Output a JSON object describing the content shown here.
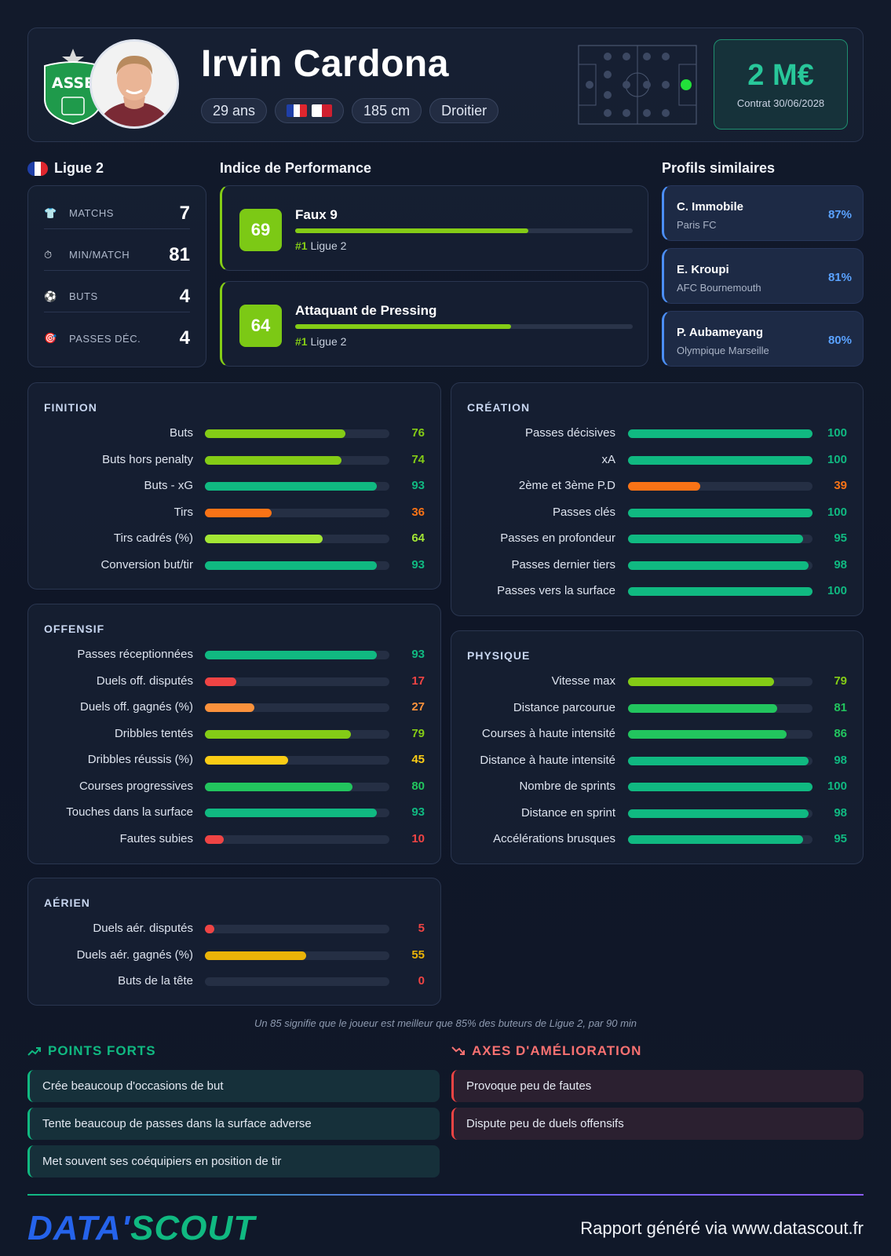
{
  "header": {
    "player_name": "Irvin Cardona",
    "age": "29 ans",
    "height": "185 cm",
    "foot": "Droitier",
    "club_logo_text": "ASSE",
    "nationalities": [
      "France",
      "Malta"
    ],
    "market_value": "2 M€",
    "contract": "Contrat 30/06/2028",
    "position_marker": "right-forward"
  },
  "league": {
    "name": "Ligue 2",
    "stats": [
      {
        "icon": "shirt-icon",
        "glyph": "👕",
        "label": "MATCHS",
        "value": "7"
      },
      {
        "icon": "stopwatch-icon",
        "glyph": "⏱",
        "label": "MIN/MATCH",
        "value": "81"
      },
      {
        "icon": "ball-icon",
        "glyph": "⚽",
        "label": "BUTS",
        "value": "4"
      },
      {
        "icon": "target-icon",
        "glyph": "🎯",
        "label": "PASSES DÉC.",
        "value": "4"
      }
    ]
  },
  "performance": {
    "title": "Indice de Performance",
    "items": [
      {
        "score": "69",
        "name": "Faux 9",
        "rank": "#1",
        "rank_league": "Ligue 2",
        "level": 0.69
      },
      {
        "score": "64",
        "name": "Attaquant de Pressing",
        "rank": "#1",
        "rank_league": "Ligue 2",
        "level": 0.64
      }
    ]
  },
  "similar": {
    "title": "Profils similaires",
    "items": [
      {
        "name": "C. Immobile",
        "club": "Paris FC",
        "pct": "87%"
      },
      {
        "name": "E. Kroupi",
        "club": "AFC Bournemouth",
        "pct": "81%"
      },
      {
        "name": "P. Aubameyang",
        "club": "Olympique Marseille",
        "pct": "80%"
      }
    ]
  },
  "finition": {
    "title": "FINITION",
    "metrics": [
      {
        "label": "Buts",
        "value": 76,
        "color": "#84cc16"
      },
      {
        "label": "Buts hors penalty",
        "value": 74,
        "color": "#84cc16"
      },
      {
        "label": "Buts - xG",
        "value": 93,
        "color": "#10b981"
      },
      {
        "label": "Tirs",
        "value": 36,
        "color": "#f97316"
      },
      {
        "label": "Tirs cadrés (%)",
        "value": 64,
        "color": "#a3e635"
      },
      {
        "label": "Conversion but/tir",
        "value": 93,
        "color": "#10b981"
      }
    ]
  },
  "creation": {
    "title": "CRÉATION",
    "metrics": [
      {
        "label": "Passes décisives",
        "value": 100,
        "color": "#10b981"
      },
      {
        "label": "xA",
        "value": 100,
        "color": "#10b981"
      },
      {
        "label": "2ème et 3ème P.D",
        "value": 39,
        "color": "#f97316"
      },
      {
        "label": "Passes clés",
        "value": 100,
        "color": "#10b981"
      },
      {
        "label": "Passes en profondeur",
        "value": 95,
        "color": "#10b981"
      },
      {
        "label": "Passes dernier tiers",
        "value": 98,
        "color": "#10b981"
      },
      {
        "label": "Passes vers la surface",
        "value": 100,
        "color": "#10b981"
      }
    ]
  },
  "offensif": {
    "title": "OFFENSIF",
    "metrics": [
      {
        "label": "Passes réceptionnées",
        "value": 93,
        "color": "#10b981"
      },
      {
        "label": "Duels off. disputés",
        "value": 17,
        "color": "#ef4444"
      },
      {
        "label": "Duels off. gagnés (%)",
        "value": 27,
        "color": "#fb923c"
      },
      {
        "label": "Dribbles tentés",
        "value": 79,
        "color": "#84cc16"
      },
      {
        "label": "Dribbles réussis (%)",
        "value": 45,
        "color": "#facc15"
      },
      {
        "label": "Courses progressives",
        "value": 80,
        "color": "#22c55e"
      },
      {
        "label": "Touches dans la surface",
        "value": 93,
        "color": "#10b981"
      },
      {
        "label": "Fautes subies",
        "value": 10,
        "color": "#ef4444"
      }
    ]
  },
  "physique": {
    "title": "PHYSIQUE",
    "metrics": [
      {
        "label": "Vitesse max",
        "value": 79,
        "color": "#84cc16"
      },
      {
        "label": "Distance parcourue",
        "value": 81,
        "color": "#22c55e"
      },
      {
        "label": "Courses à haute intensité",
        "value": 86,
        "color": "#22c55e"
      },
      {
        "label": "Distance à haute intensité",
        "value": 98,
        "color": "#10b981"
      },
      {
        "label": "Nombre de sprints",
        "value": 100,
        "color": "#10b981"
      },
      {
        "label": "Distance en sprint",
        "value": 98,
        "color": "#10b981"
      },
      {
        "label": "Accélérations brusques",
        "value": 95,
        "color": "#10b981"
      }
    ]
  },
  "aerien": {
    "title": "AÉRIEN",
    "metrics": [
      {
        "label": "Duels aér. disputés",
        "value": 5,
        "color": "#ef4444"
      },
      {
        "label": "Duels aér. gagnés (%)",
        "value": 55,
        "color": "#eab308"
      },
      {
        "label": "Buts de la tête",
        "value": 0,
        "color": "#ef4444"
      }
    ]
  },
  "note": "Un 85 signifie que le joueur est meilleur que 85% des buteurs de Ligue 2, par 90 min",
  "strengths": {
    "title": "POINTS FORTS",
    "items": [
      "Crée beaucoup d'occasions de but",
      "Tente beaucoup de passes dans la surface adverse",
      "Met souvent ses coéquipiers en position de tir"
    ]
  },
  "weaknesses": {
    "title": "AXES D'AMÉLIORATION",
    "items": [
      "Provoque peu de fautes",
      "Dispute peu de duels offensifs"
    ]
  },
  "footer": {
    "brand_part1": "DATA'",
    "brand_part2": "SCOUT",
    "text": "Rapport généré via www.datascout.fr"
  },
  "colors": {
    "accent_green": "#10b981",
    "accent_lime": "#84cc16",
    "accent_blue": "#3b82f6",
    "danger": "#ef4444"
  }
}
